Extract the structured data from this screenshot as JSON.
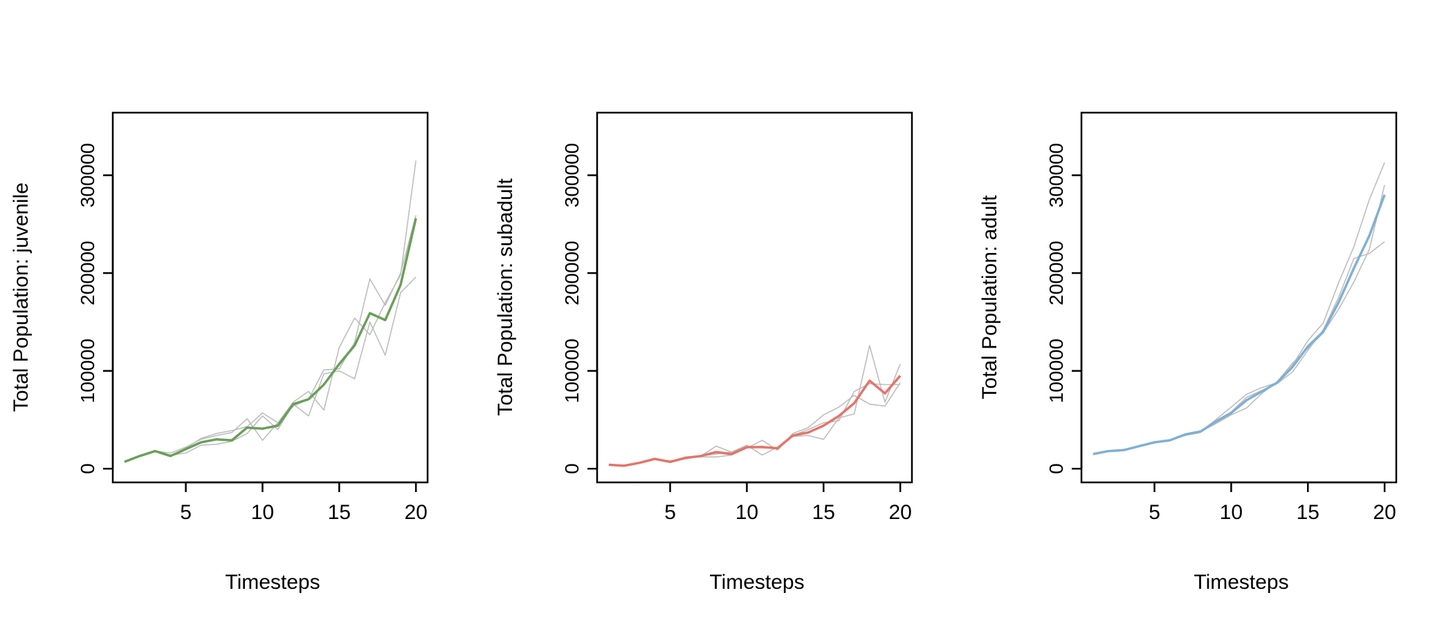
{
  "chart_data": [
    {
      "type": "line",
      "xlabel": "Timesteps",
      "ylabel": "Total Population:  juvenile",
      "xticks": [
        5,
        10,
        15,
        20
      ],
      "yticks": [
        0,
        100000,
        200000,
        300000
      ],
      "ytick_labels": [
        "0",
        "100000",
        "200000",
        "300000"
      ],
      "xlim": [
        0.24,
        20.76
      ],
      "ylim": [
        -14000,
        364000
      ],
      "x": [
        1,
        2,
        3,
        4,
        5,
        6,
        7,
        8,
        9,
        10,
        11,
        12,
        13,
        14,
        15,
        16,
        17,
        18,
        19,
        20
      ],
      "mean_color": "#6a9f5a",
      "replicate_color": "#bdbdbd",
      "series": [
        {
          "role": "mean",
          "values": [
            7000,
            13000,
            18000,
            13000,
            20000,
            27000,
            30000,
            29000,
            42000,
            41000,
            44000,
            66000,
            71000,
            86000,
            107000,
            126000,
            159000,
            152000,
            188000,
            256000
          ]
        },
        {
          "role": "replicate",
          "values": [
            7000,
            13000,
            18000,
            14000,
            16000,
            24000,
            25000,
            28000,
            36000,
            54000,
            40000,
            66000,
            54000,
            97000,
            100000,
            92000,
            150000,
            116000,
            180000,
            196000
          ]
        },
        {
          "role": "replicate",
          "values": [
            7000,
            13000,
            18000,
            16000,
            22000,
            30000,
            34000,
            37000,
            51000,
            29000,
            47000,
            68000,
            79000,
            60000,
            124000,
            154000,
            137000,
            170000,
            198000,
            315000
          ]
        },
        {
          "role": "replicate",
          "values": [
            7000,
            13000,
            18000,
            13000,
            21000,
            31000,
            36000,
            39000,
            43000,
            57000,
            47000,
            64000,
            71000,
            101000,
            102000,
            129000,
            194000,
            167000,
            200000,
            259000
          ]
        }
      ]
    },
    {
      "type": "line",
      "xlabel": "Timesteps",
      "ylabel": "Total Population:  subadult",
      "xticks": [
        5,
        10,
        15,
        20
      ],
      "yticks": [
        0,
        100000,
        200000,
        300000
      ],
      "ytick_labels": [
        "0",
        "100000",
        "200000",
        "300000"
      ],
      "xlim": [
        0.24,
        20.76
      ],
      "ylim": [
        -14000,
        364000
      ],
      "x": [
        1,
        2,
        3,
        4,
        5,
        6,
        7,
        8,
        9,
        10,
        11,
        12,
        13,
        14,
        15,
        16,
        17,
        18,
        19,
        20
      ],
      "mean_color": "#e4746a",
      "replicate_color": "#bdbdbd",
      "series": [
        {
          "role": "mean",
          "values": [
            4000,
            3000,
            6000,
            10000,
            7000,
            11000,
            13000,
            17000,
            15000,
            22000,
            22000,
            21000,
            34000,
            37000,
            44000,
            54000,
            67000,
            90000,
            77000,
            95000
          ]
        },
        {
          "role": "replicate",
          "values": [
            4000,
            3000,
            6000,
            10000,
            7000,
            12000,
            13000,
            23000,
            17000,
            24000,
            14000,
            22000,
            33000,
            34000,
            30000,
            52000,
            56000,
            126000,
            68000,
            107000
          ]
        },
        {
          "role": "replicate",
          "values": [
            4000,
            3000,
            6000,
            10000,
            8000,
            11000,
            12000,
            12000,
            14000,
            21000,
            29000,
            19000,
            36000,
            42000,
            55000,
            63000,
            75000,
            66000,
            64000,
            88000
          ]
        },
        {
          "role": "replicate",
          "values": [
            4000,
            3000,
            6000,
            10000,
            7000,
            10000,
            13000,
            15000,
            17000,
            22000,
            23000,
            21000,
            34000,
            40000,
            47000,
            49000,
            79000,
            87000,
            86000,
            86000
          ]
        }
      ]
    },
    {
      "type": "line",
      "xlabel": "Timesteps",
      "ylabel": "Total Population:  adult",
      "xticks": [
        5,
        10,
        15,
        20
      ],
      "yticks": [
        0,
        100000,
        200000,
        300000
      ],
      "ytick_labels": [
        "0",
        "100000",
        "200000",
        "300000"
      ],
      "xlim": [
        0.24,
        20.76
      ],
      "ylim": [
        -14000,
        364000
      ],
      "x": [
        1,
        2,
        3,
        4,
        5,
        6,
        7,
        8,
        9,
        10,
        11,
        12,
        13,
        14,
        15,
        16,
        17,
        18,
        19,
        20
      ],
      "mean_color": "#7fb0d4",
      "replicate_color": "#bdbdbd",
      "series": [
        {
          "role": "mean",
          "values": [
            15000,
            18000,
            19000,
            23000,
            27000,
            29000,
            35000,
            38000,
            48000,
            57000,
            70000,
            79000,
            88000,
            104000,
            125000,
            140000,
            170000,
            205000,
            238000,
            280000
          ]
        },
        {
          "role": "replicate",
          "values": [
            15000,
            18000,
            19000,
            23000,
            27000,
            29000,
            35000,
            38000,
            50000,
            63000,
            76000,
            83000,
            88000,
            106000,
            131000,
            149000,
            190000,
            227000,
            275000,
            313000
          ]
        },
        {
          "role": "replicate",
          "values": [
            15000,
            18000,
            19000,
            23000,
            27000,
            29000,
            35000,
            38000,
            46000,
            55000,
            62000,
            77000,
            89000,
            108000,
            123000,
            139000,
            163000,
            191000,
            224000,
            290000
          ]
        },
        {
          "role": "replicate",
          "values": [
            15000,
            18000,
            19000,
            23000,
            27000,
            29000,
            34000,
            37000,
            49000,
            58000,
            73000,
            80000,
            87000,
            99000,
            121000,
            142000,
            175000,
            215000,
            220000,
            232000
          ]
        }
      ]
    }
  ]
}
